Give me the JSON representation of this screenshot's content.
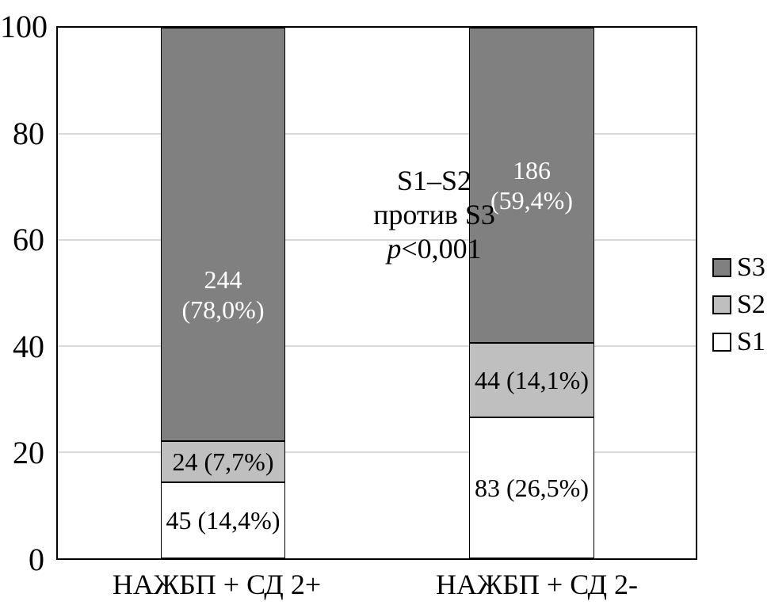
{
  "chart_data": {
    "type": "bar",
    "stacked": true,
    "categories": [
      "НАЖБП + СД 2+",
      "НАЖБП + СД 2-"
    ],
    "series": [
      {
        "name": "S1",
        "counts": [
          45,
          83
        ],
        "values": [
          14.4,
          26.5
        ],
        "color": "#ffffff"
      },
      {
        "name": "S2",
        "counts": [
          24,
          44
        ],
        "values": [
          7.7,
          14.1
        ],
        "color": "#bfbfbf"
      },
      {
        "name": "S3",
        "counts": [
          244,
          186
        ],
        "values": [
          78.0,
          59.4
        ],
        "color": "#808080"
      }
    ],
    "ylim": [
      0,
      100
    ],
    "yticks": [
      0,
      20,
      40,
      60,
      80,
      100
    ],
    "grid": true,
    "legend_position": "right",
    "annotation_text": "S1–S2 против S3 p<0,001"
  },
  "axis": {
    "yticks_display": [
      "100",
      "80",
      "60",
      "40",
      "20",
      "0"
    ]
  },
  "segment_labels": {
    "bar1_s3_line1": "244",
    "bar1_s3_line2": "(78,0%)",
    "bar1_s2": "24 (7,7%)",
    "bar1_s1": "45 (14,4%)",
    "bar2_s3_line1": "186",
    "bar2_s3_line2": "(59,4%)",
    "bar2_s2": "44 (14,1%)",
    "bar2_s1": "83 (26,5%)"
  },
  "annotation": {
    "line1": "S1–S2",
    "line2": "против S3",
    "p_italic": "p",
    "p_rest": "<0,001"
  },
  "legend": {
    "items": [
      {
        "label": "S3"
      },
      {
        "label": "S2"
      },
      {
        "label": "S1"
      }
    ]
  },
  "colors": {
    "s1": "#ffffff",
    "s2": "#bfbfbf",
    "s3": "#808080",
    "gridline": "#d9d9d9",
    "border": "#000000",
    "s3_label_text": "#ffffff"
  }
}
